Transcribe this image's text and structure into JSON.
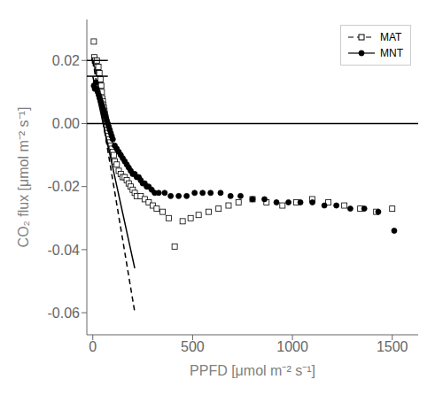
{
  "chart_data": {
    "type": "scatter",
    "xlabel": "PPFD [μmol m⁻² s⁻¹]",
    "ylabel": "CO₂ flux [μmol m⁻² s⁻¹]",
    "xlim": [
      -30,
      1630
    ],
    "ylim": [
      -0.067,
      0.033
    ],
    "xticks": [
      0,
      500,
      1000,
      1500
    ],
    "yticks": [
      -0.06,
      -0.04,
      -0.02,
      {
        "value": 0,
        "label": "0.00"
      },
      0.02
    ],
    "grid": false,
    "legend": "upper right",
    "series": [
      {
        "name": "MAT",
        "type": "scatter",
        "marker": "square",
        "line_style": "dashed",
        "color": "#000000",
        "x": [
          5,
          8,
          10,
          12,
          15,
          18,
          20,
          22,
          25,
          28,
          30,
          33,
          35,
          38,
          40,
          42,
          45,
          48,
          50,
          52,
          55,
          58,
          60,
          63,
          65,
          68,
          70,
          73,
          75,
          78,
          80,
          85,
          90,
          95,
          100,
          105,
          110,
          120,
          130,
          140,
          150,
          160,
          170,
          180,
          190,
          200,
          210,
          220,
          240,
          260,
          280,
          300,
          320,
          350,
          380,
          410,
          450,
          490,
          530,
          580,
          630,
          680,
          730,
          800,
          870,
          950,
          1020,
          1100,
          1180,
          1260,
          1340,
          1420,
          1500
        ],
        "values": [
          0.026,
          0.021,
          0.02,
          0.02,
          0.019,
          0.019,
          0.02,
          0.018,
          0.017,
          0.018,
          0.016,
          0.016,
          0.013,
          0.014,
          0.012,
          0.012,
          0.01,
          0.008,
          0.007,
          0.006,
          0.005,
          0.004,
          0.003,
          0.002,
          0.001,
          0.0,
          -0.001,
          -0.002,
          -0.003,
          -0.004,
          -0.005,
          -0.006,
          -0.007,
          -0.008,
          -0.009,
          -0.01,
          -0.012,
          -0.013,
          -0.015,
          -0.016,
          -0.017,
          -0.017,
          -0.018,
          -0.019,
          -0.02,
          -0.021,
          -0.022,
          -0.023,
          -0.023,
          -0.024,
          -0.025,
          -0.026,
          -0.027,
          -0.028,
          -0.03,
          -0.039,
          -0.031,
          -0.03,
          -0.029,
          -0.028,
          -0.027,
          -0.026,
          -0.025,
          -0.024,
          -0.025,
          -0.026,
          -0.025,
          -0.024,
          -0.025,
          -0.026,
          -0.027,
          -0.028,
          -0.027
        ]
      },
      {
        "name": "MNT",
        "type": "scatter",
        "marker": "circle",
        "line_style": "solid",
        "color": "#000000",
        "x": [
          5,
          10,
          15,
          20,
          25,
          30,
          35,
          40,
          45,
          50,
          55,
          60,
          65,
          70,
          75,
          80,
          85,
          90,
          95,
          100,
          110,
          120,
          130,
          140,
          150,
          160,
          170,
          180,
          190,
          200,
          210,
          220,
          230,
          240,
          250,
          260,
          270,
          280,
          295,
          310,
          330,
          360,
          390,
          430,
          470,
          510,
          550,
          590,
          640,
          690,
          740,
          800,
          860,
          920,
          980,
          1040,
          1100,
          1160,
          1220,
          1290,
          1360,
          1430,
          1510
        ],
        "values": [
          0.012,
          0.011,
          0.013,
          0.011,
          0.01,
          0.009,
          0.008,
          0.007,
          0.006,
          0.005,
          0.004,
          0.003,
          0.002,
          0.001,
          0.0,
          -0.001,
          -0.002,
          -0.003,
          -0.004,
          -0.005,
          -0.007,
          -0.008,
          -0.009,
          -0.01,
          -0.011,
          -0.012,
          -0.013,
          -0.014,
          -0.015,
          -0.016,
          -0.016,
          -0.017,
          -0.017,
          -0.018,
          -0.019,
          -0.019,
          -0.02,
          -0.02,
          -0.021,
          -0.022,
          -0.022,
          -0.022,
          -0.023,
          -0.023,
          -0.023,
          -0.022,
          -0.022,
          -0.022,
          -0.022,
          -0.023,
          -0.023,
          -0.024,
          -0.024,
          -0.025,
          -0.025,
          -0.025,
          -0.025,
          -0.026,
          -0.026,
          -0.027,
          -0.027,
          -0.028,
          -0.034
        ]
      },
      {
        "type": "line",
        "line_style": "dashed",
        "color": "#000000",
        "x": [
          0,
          210
        ],
        "values": [
          0.02,
          -0.0598
        ]
      },
      {
        "type": "line",
        "line_style": "solid",
        "color": "#000000",
        "x": [
          0,
          210
        ],
        "values": [
          0.015,
          -0.0459
        ]
      },
      {
        "type": "line",
        "line_style": "solid",
        "color": "#000000",
        "x": [
          -30,
          75
        ],
        "values": [
          0.02,
          0.02
        ]
      },
      {
        "type": "line",
        "line_style": "solid",
        "color": "#000000",
        "x": [
          -30,
          75
        ],
        "values": [
          0.015,
          0.015
        ]
      },
      {
        "type": "line",
        "line_style": "solid",
        "color": "#000000",
        "x": [
          -30,
          1630
        ],
        "values": [
          0,
          0
        ]
      }
    ]
  }
}
